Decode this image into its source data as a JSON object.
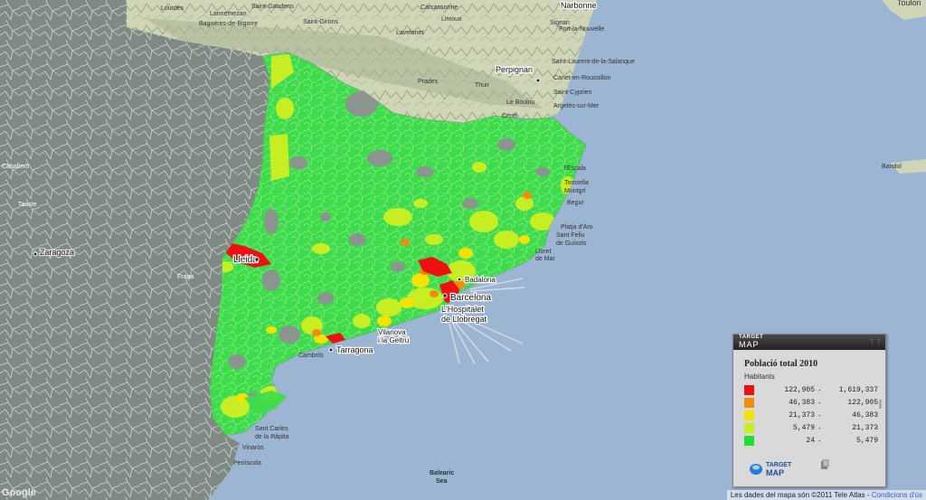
{
  "map": {
    "places": {
      "lourdes": "Lourdes",
      "lannemezan": "Lannemezan",
      "saint_gaudens": "Saint-Gaudens",
      "bagneres": "Bagnères-de-Bigorre",
      "saint_girons": "Saint-Girons",
      "lavelanet": "Lavelanet",
      "carcassonne": "Carcassonne",
      "limoux": "Limoux",
      "narbonne": "Narbonne",
      "sigean": "Sigean",
      "port_la_nouvelle": "Port-la-Nouvelle",
      "perpignan": "Perpignan",
      "saint_laurent": "Saint-Laurent-de-la-Salanque",
      "canet": "Canet-en-Roussillon",
      "saint_cyprien": "Saint-Cyprien",
      "argeles": "Argelès-sur-Mer",
      "ceret": "Céret",
      "le_boulou": "Le Boulou",
      "prades": "Prades",
      "thuir": "Thuir",
      "fraga": "Fraga",
      "zaragoza": "Zaragoza",
      "caballero": "Caballero",
      "tauste": "Tauste",
      "toulon": "Toulon",
      "bandol": "Bandol",
      "lleida": "Lleida",
      "barcelona": "Barcelona",
      "badalona": "Badalona",
      "hospitalet1": "L'Hospitalet",
      "hospitalet2": "de Llobregat",
      "tarragona": "Tarragona",
      "vilanova1": "Vilanova",
      "vilanova2": "i la Geltrú",
      "cambrils": "Cambrils",
      "sant_carles1": "Sant Carles",
      "sant_carles2": "de la Ràpita",
      "vinaros": "Vinaròs",
      "peniscola": "Peníscola",
      "lloret1": "Lloret",
      "lloret2": "de Mar",
      "sant_feliu1": "Sant Feliu",
      "sant_feliu2": "de Guíxols",
      "platja": "Platja d'Aro",
      "begur": "Begur",
      "montgri": "Montgrí",
      "torroella": "Torroella",
      "escala": "l'Escala",
      "sea1": "Balearic",
      "sea2": "Sea",
      "google": "Google"
    }
  },
  "legend": {
    "brand_top": "TARGET",
    "brand_bottom": "MAP",
    "title": "Població total 2010",
    "subtitle": "Habitants",
    "rows": [
      {
        "min": "122,905",
        "max": "1,619,337",
        "color": "#ee1111"
      },
      {
        "min": "46,383",
        "max": "122,905",
        "color": "#f58a0f"
      },
      {
        "min": "21,373",
        "max": "46,383",
        "color": "#f2e300"
      },
      {
        "min": "5,479",
        "max": "21,373",
        "color": "#c7ee22"
      },
      {
        "min": "24",
        "max": "5,479",
        "color": "#22dd33"
      }
    ],
    "logo_top": "TARGET",
    "logo_bottom": "MAP"
  },
  "footer": {
    "text": "Les dades del mapa són ©2011 Tele Atlas - ",
    "link": "Condicions d'ús"
  }
}
